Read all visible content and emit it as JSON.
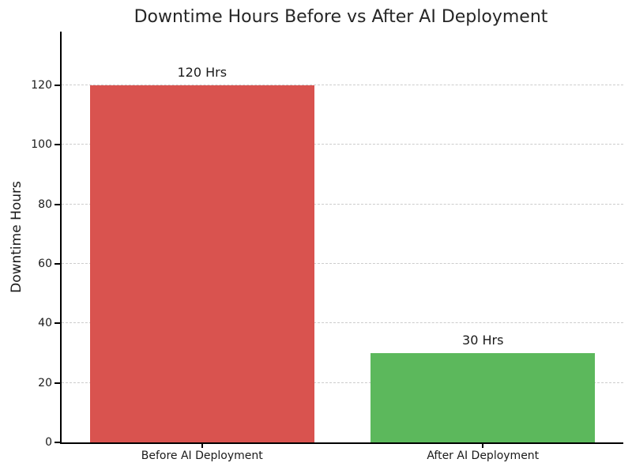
{
  "chart_data": {
    "type": "bar",
    "title": "Downtime Hours Before vs After AI Deployment",
    "xlabel": "",
    "ylabel": "Downtime Hours",
    "categories": [
      "Before AI Deployment",
      "After AI Deployment"
    ],
    "values": [
      120,
      30
    ],
    "bar_labels": [
      "120 Hrs",
      "30 Hrs"
    ],
    "bar_colors": [
      "#d9534f",
      "#5cb85c"
    ],
    "yticks": [
      0,
      20,
      40,
      60,
      80,
      100,
      120
    ],
    "ylim": [
      0,
      138
    ],
    "grid": "horizontal-dashed",
    "legend_position": "none"
  },
  "colors": {
    "background": "#ffffff",
    "grid": "#cccccc",
    "axis": "#000000",
    "title_text": "#262626",
    "label_text": "#1a1a1a"
  }
}
